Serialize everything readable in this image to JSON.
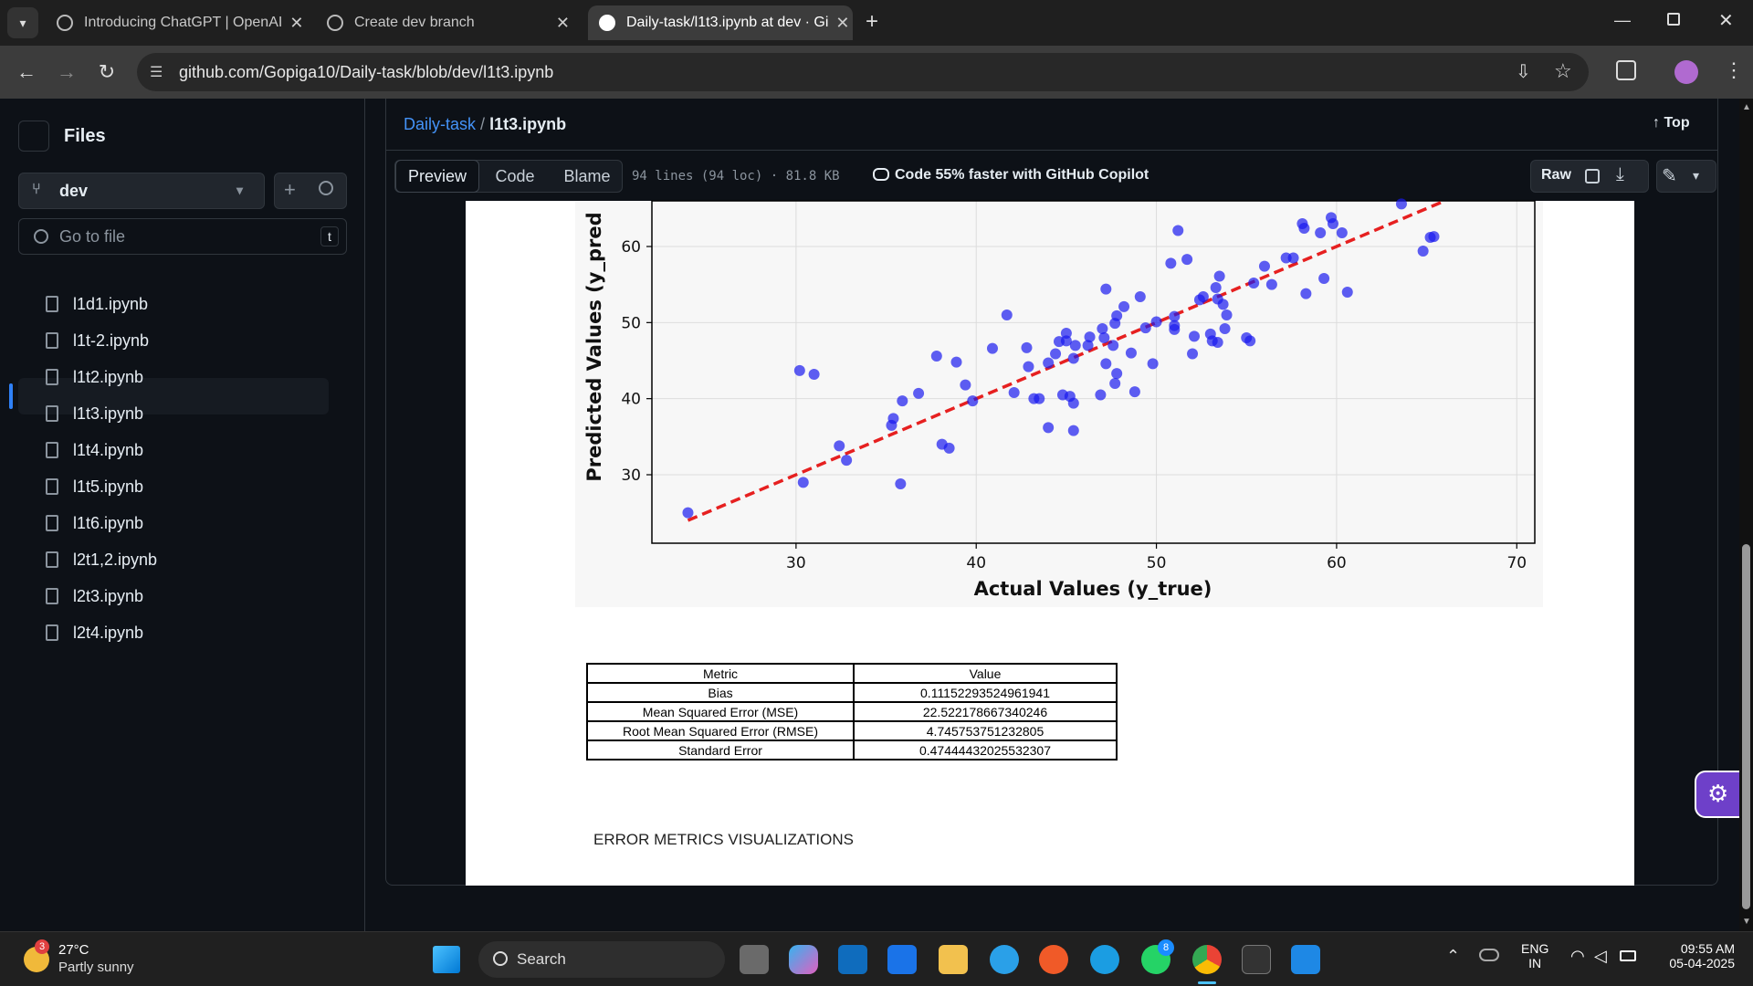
{
  "browser": {
    "tabs": [
      {
        "label": "Introducing ChatGPT | OpenAI",
        "active": false
      },
      {
        "label": "Create dev branch",
        "active": false
      },
      {
        "label": "Daily-task/l1t3.ipynb at dev · Gi",
        "active": true
      }
    ],
    "url": "github.com/Gopiga10/Daily-task/blob/dev/l1t3.ipynb",
    "new_tab": "+"
  },
  "sidebar": {
    "title": "Files",
    "branch": "dev",
    "goto_placeholder": "Go to file",
    "goto_shortcut": "t",
    "files": [
      {
        "name": "l1d1.ipynb",
        "selected": false
      },
      {
        "name": "l1t-2.ipynb",
        "selected": false
      },
      {
        "name": "l1t2.ipynb",
        "selected": false
      },
      {
        "name": "l1t3.ipynb",
        "selected": true
      },
      {
        "name": "l1t4.ipynb",
        "selected": false
      },
      {
        "name": "l1t5.ipynb",
        "selected": false
      },
      {
        "name": "l1t6.ipynb",
        "selected": false
      },
      {
        "name": "l2t1,2.ipynb",
        "selected": false
      },
      {
        "name": "l2t3.ipynb",
        "selected": false
      },
      {
        "name": "l2t4.ipynb",
        "selected": false
      }
    ]
  },
  "header": {
    "repo": "Daily-task",
    "sep": "/",
    "file": "l1t3.ipynb",
    "top": "Top"
  },
  "toolbar": {
    "preview": "Preview",
    "code": "Code",
    "blame": "Blame",
    "info": "94 lines (94 loc) · 81.8 KB",
    "copilot": "Code 55% faster with GitHub Copilot",
    "raw": "Raw"
  },
  "chart_data": {
    "type": "scatter",
    "xlabel": "Actual Values (y_true)",
    "ylabel": "Predicted Values (y_pred",
    "xlim": [
      22,
      71
    ],
    "ylim": [
      21,
      66
    ],
    "xticks": [
      30,
      40,
      50,
      60,
      70
    ],
    "yticks": [
      30,
      40,
      50,
      60
    ],
    "grid": true,
    "reference_line": {
      "from": [
        24,
        24
      ],
      "to": [
        66,
        66
      ],
      "color": "#e62020",
      "style": "dashed"
    },
    "point_color": "#1a1aee",
    "points": [
      [
        24,
        25
      ],
      [
        30.2,
        43.7
      ],
      [
        30.4,
        29
      ],
      [
        31,
        43.2
      ],
      [
        32.4,
        33.8
      ],
      [
        32.8,
        31.9
      ],
      [
        35.3,
        36.5
      ],
      [
        35.4,
        37.4
      ],
      [
        35.8,
        28.8
      ],
      [
        35.9,
        39.7
      ],
      [
        36.8,
        40.7
      ],
      [
        37.8,
        45.6
      ],
      [
        38.1,
        34
      ],
      [
        38.5,
        33.5
      ],
      [
        38.9,
        44.8
      ],
      [
        39.4,
        41.8
      ],
      [
        39.8,
        39.7
      ],
      [
        40.9,
        46.6
      ],
      [
        41.7,
        51
      ],
      [
        42.1,
        40.8
      ],
      [
        42.8,
        46.7
      ],
      [
        42.9,
        44.2
      ],
      [
        43.2,
        40
      ],
      [
        43.5,
        40
      ],
      [
        44,
        44.7
      ],
      [
        44,
        36.2
      ],
      [
        44.4,
        45.9
      ],
      [
        44.6,
        47.5
      ],
      [
        44.8,
        40.5
      ],
      [
        45,
        47.6
      ],
      [
        45,
        48.6
      ],
      [
        45.2,
        40.3
      ],
      [
        45.4,
        39.4
      ],
      [
        45.4,
        35.8
      ],
      [
        45.4,
        45.3
      ],
      [
        45.5,
        47
      ],
      [
        46.2,
        47
      ],
      [
        46.3,
        48.1
      ],
      [
        46.9,
        40.5
      ],
      [
        47,
        49.2
      ],
      [
        47.1,
        48
      ],
      [
        47.2,
        54.4
      ],
      [
        47.2,
        44.6
      ],
      [
        47.6,
        47
      ],
      [
        47.7,
        49.9
      ],
      [
        47.7,
        42
      ],
      [
        47.8,
        43.3
      ],
      [
        47.8,
        50.9
      ],
      [
        48.2,
        52.1
      ],
      [
        48.6,
        46
      ],
      [
        48.8,
        40.9
      ],
      [
        49.1,
        53.4
      ],
      [
        49.4,
        49.3
      ],
      [
        49.8,
        44.6
      ],
      [
        50,
        50.1
      ],
      [
        50.8,
        57.8
      ],
      [
        51,
        50.8
      ],
      [
        51,
        49.6
      ],
      [
        51,
        49.1
      ],
      [
        51.2,
        62.1
      ],
      [
        51.7,
        58.3
      ],
      [
        52,
        45.9
      ],
      [
        52.1,
        48.2
      ],
      [
        52.4,
        53
      ],
      [
        52.6,
        53.4
      ],
      [
        53,
        48.5
      ],
      [
        53.1,
        47.6
      ],
      [
        53.3,
        54.6
      ],
      [
        53.4,
        47.4
      ],
      [
        53.4,
        53.1
      ],
      [
        53.5,
        56.1
      ],
      [
        53.7,
        52.4
      ],
      [
        53.8,
        49.2
      ],
      [
        53.9,
        51
      ],
      [
        55,
        48
      ],
      [
        55.2,
        47.6
      ],
      [
        55.4,
        55.2
      ],
      [
        56,
        57.4
      ],
      [
        56.4,
        55
      ],
      [
        57.2,
        58.5
      ],
      [
        57.6,
        58.5
      ],
      [
        58.1,
        63
      ],
      [
        58.2,
        62.4
      ],
      [
        58.3,
        53.8
      ],
      [
        59.1,
        61.8
      ],
      [
        59.3,
        55.8
      ],
      [
        59.7,
        63.8
      ],
      [
        59.8,
        63
      ],
      [
        60.3,
        61.8
      ],
      [
        60.6,
        54
      ],
      [
        63.6,
        65.6
      ],
      [
        64.8,
        59.4
      ],
      [
        65.2,
        61.2
      ],
      [
        65.4,
        61.3
      ]
    ]
  },
  "metrics_table": {
    "headers": [
      "Metric",
      "Value"
    ],
    "rows": [
      [
        "Bias",
        "0.11152293524961941"
      ],
      [
        "Mean Squared Error (MSE)",
        "22.522178667340246"
      ],
      [
        "Root Mean Squared Error (RMSE)",
        "4.745753751232805"
      ],
      [
        "Standard Error",
        "0.47444432025532307"
      ]
    ]
  },
  "section_text": "ERROR METRICS VISUALIZATIONS",
  "taskbar": {
    "weather_temp": "27°C",
    "weather_desc": "Partly sunny",
    "weather_badge": "3",
    "search": "Search",
    "lang1": "ENG",
    "lang2": "IN",
    "time": "09:55 AM",
    "date": "05-04-2025",
    "whatsapp_badge": "8"
  }
}
